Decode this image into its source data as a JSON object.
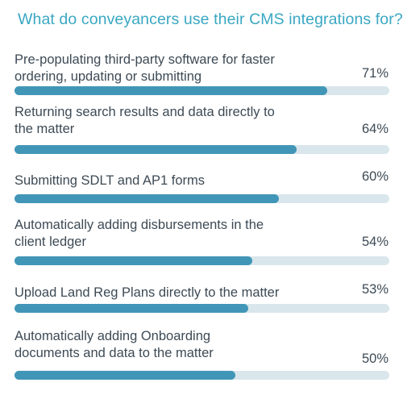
{
  "chart_data": {
    "type": "bar",
    "orientation": "horizontal",
    "title": "What do conveyancers use their CMS integrations for?",
    "categories": [
      [
        "Pre-populating third-party software for faster",
        "ordering, updating or submitting"
      ],
      [
        "Returning search results and data directly to",
        "the matter"
      ],
      [
        "Submitting SDLT and AP1 forms"
      ],
      [
        "Automatically adding disbursements in the",
        "client ledger"
      ],
      [
        "Upload Land Reg Plans directly to the matter"
      ],
      [
        "Automatically adding Onboarding",
        "documents and data to the matter"
      ]
    ],
    "value_labels": [
      "71%",
      "64%",
      "60%",
      "54%",
      "53%",
      "50%"
    ],
    "values": [
      71,
      64,
      60,
      54,
      53,
      50
    ],
    "xlim": [
      0,
      85
    ],
    "grid": false,
    "legend": "none"
  },
  "colors": {
    "title": "#3aa7c3",
    "bar_fill": "#4196b7",
    "bar_track": "#d9e6ec",
    "text": "#3d4a55"
  }
}
